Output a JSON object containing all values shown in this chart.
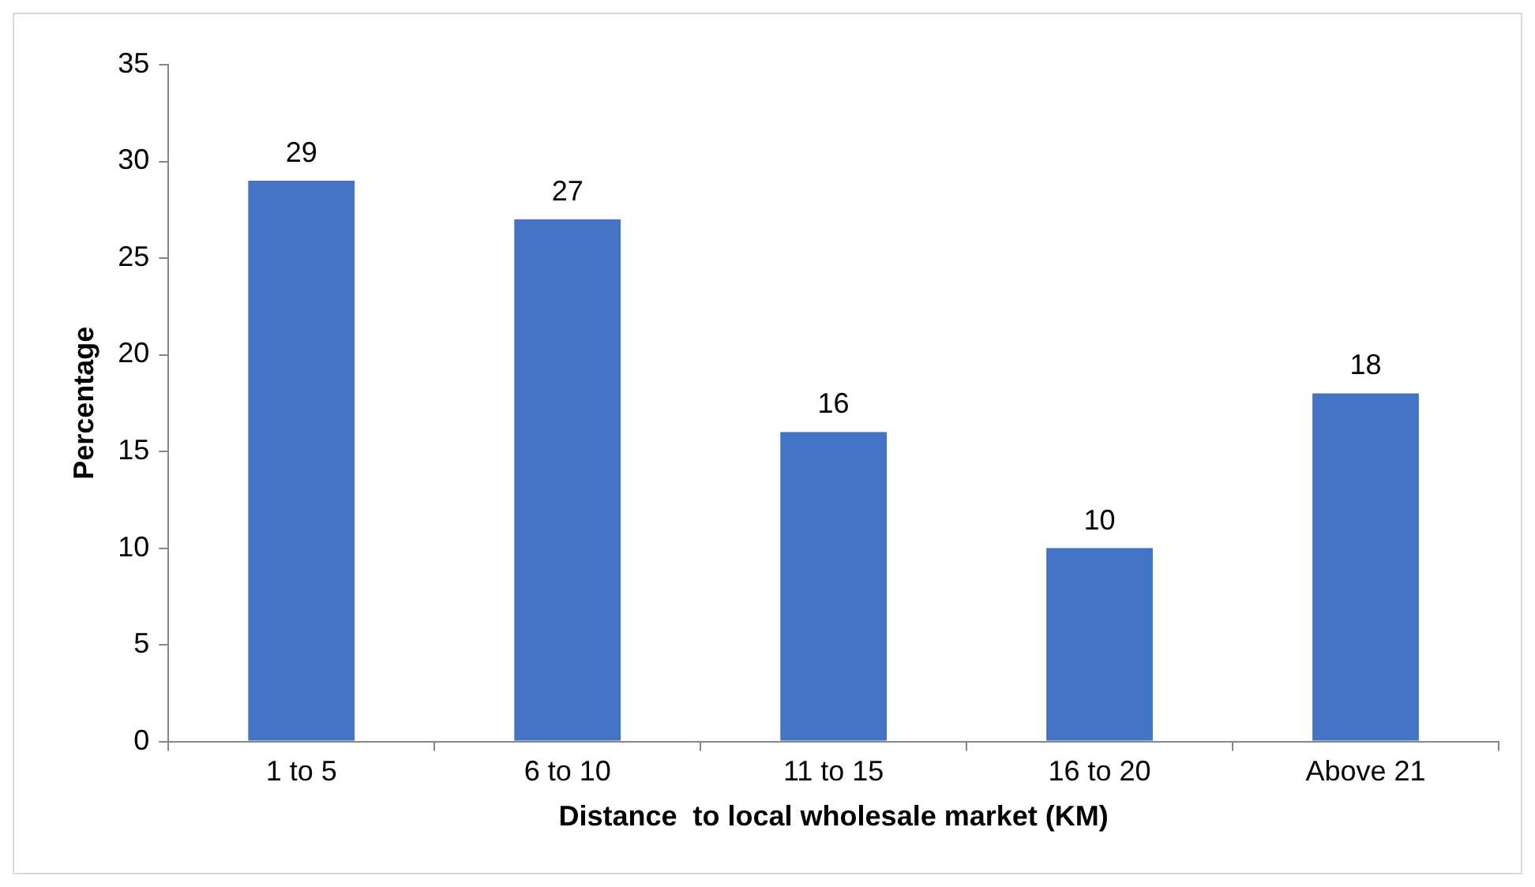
{
  "chart_data": {
    "type": "bar",
    "xlabel": "Distance  to local wholesale market (KM)",
    "ylabel": "Percentage",
    "categories": [
      "1 to 5",
      "6 to 10",
      "11 to 15",
      "16 to 20",
      "Above 21"
    ],
    "values": [
      29,
      27,
      16,
      10,
      18
    ],
    "color": "#4472c4",
    "ylim": [
      0,
      35
    ],
    "yticks": [
      0,
      5,
      10,
      15,
      20,
      25,
      30,
      35
    ],
    "data_labels": true
  }
}
